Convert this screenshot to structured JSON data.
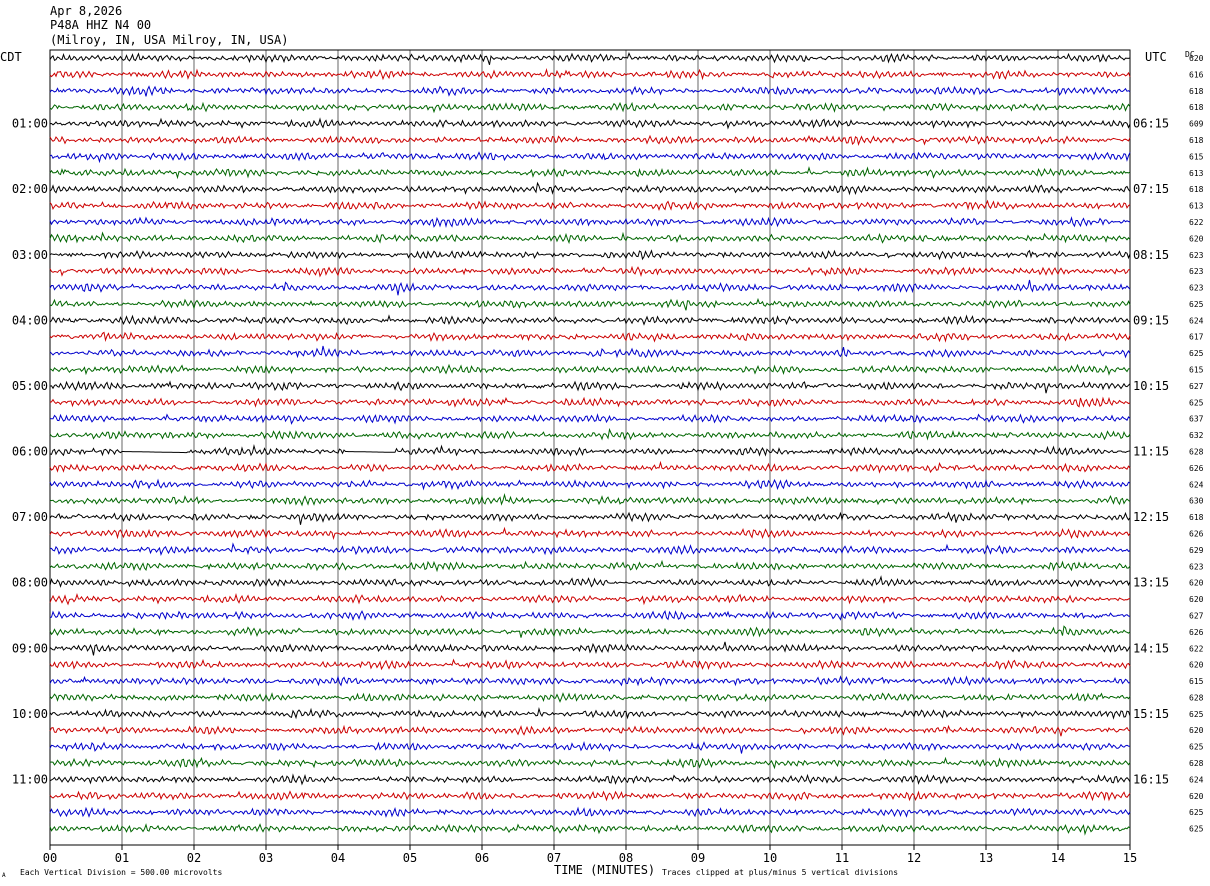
{
  "header": {
    "date": "Apr 8,2026",
    "station": "P48A HHZ N4 00",
    "location": "(Milroy, IN, USA Milroy, IN, USA)"
  },
  "left_zone": "CDT",
  "right_zone": "UTC",
  "dc_header": "DC",
  "footer": {
    "xlabel": "TIME (MINUTES)",
    "scale_note": "Each Vertical Division =  500.00 microvolts",
    "clip_note": "Traces clipped at plus/minus 5 vertical divisions",
    "corner_mark": "A"
  },
  "colors": {
    "trace_cycle": [
      "#000000",
      "#cc0000",
      "#0000cc",
      "#006600"
    ],
    "grid": "#000000"
  },
  "chart_data": {
    "type": "line",
    "title": "P48A HHZ N4 00",
    "xlabel": "TIME (MINUTES)",
    "x_ticks": [
      "00",
      "01",
      "02",
      "03",
      "04",
      "05",
      "06",
      "07",
      "08",
      "09",
      "10",
      "11",
      "12",
      "13",
      "14",
      "15"
    ],
    "xlim": [
      0,
      15
    ],
    "row_interval_minutes": 15,
    "left_hour_labels": [
      "01:00",
      "02:00",
      "03:00",
      "04:00",
      "05:00",
      "06:00",
      "07:00",
      "08:00",
      "09:00",
      "10:00",
      "11:00"
    ],
    "right_hour_labels": [
      "06:15",
      "07:15",
      "08:15",
      "09:15",
      "10:15",
      "11:15",
      "12:15",
      "13:15",
      "14:15",
      "15:15",
      "16:15"
    ],
    "dc_offsets": [
      "620",
      "616",
      "618",
      "618",
      "609",
      "618",
      "615",
      "613",
      "618",
      "613",
      "622",
      "620",
      "623",
      "623",
      "623",
      "625",
      "624",
      "617",
      "625",
      "615",
      "627",
      "625",
      "637",
      "632",
      "628",
      "626",
      "624",
      "630",
      "618",
      "626",
      "629",
      "623",
      "620",
      "620",
      "627",
      "626",
      "622",
      "620",
      "615",
      "628",
      "625",
      "620",
      "625",
      "628",
      "624",
      "620",
      "625",
      "625"
    ],
    "gaps": [
      {
        "row": 24,
        "from_min": 1.0,
        "to_min": 1.9
      },
      {
        "row": 24,
        "from_min": 4.1,
        "to_min": 4.8
      }
    ]
  }
}
